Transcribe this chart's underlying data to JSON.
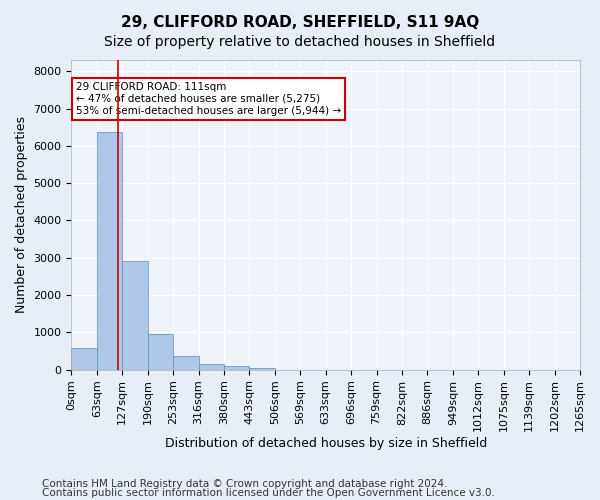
{
  "title": "29, CLIFFORD ROAD, SHEFFIELD, S11 9AQ",
  "subtitle": "Size of property relative to detached houses in Sheffield",
  "xlabel": "Distribution of detached houses by size in Sheffield",
  "ylabel": "Number of detached properties",
  "bar_values": [
    580,
    6370,
    2920,
    970,
    360,
    155,
    90,
    55,
    0,
    0,
    0,
    0,
    0,
    0,
    0,
    0,
    0,
    0,
    0,
    0
  ],
  "bar_labels": [
    "0sqm",
    "63sqm",
    "127sqm",
    "190sqm",
    "253sqm",
    "316sqm",
    "380sqm",
    "443sqm",
    "506sqm",
    "569sqm",
    "633sqm",
    "696sqm",
    "759sqm",
    "822sqm",
    "886sqm",
    "949sqm",
    "1012sqm",
    "1075sqm",
    "1139sqm",
    "1202sqm",
    "1265sqm"
  ],
  "bar_color": "#aec6e8",
  "bar_edge_color": "#5a8fc2",
  "bar_width": 1.0,
  "ylim": [
    0,
    8300
  ],
  "yticks": [
    0,
    1000,
    2000,
    3000,
    4000,
    5000,
    6000,
    7000,
    8000
  ],
  "red_line_x": 1.85,
  "annotation_text": "29 CLIFFORD ROAD: 111sqm\n← 47% of detached houses are smaller (5,275)\n53% of semi-detached houses are larger (5,944) →",
  "annotation_box_color": "#ffffff",
  "annotation_box_edge_color": "#cc0000",
  "footer_line1": "Contains HM Land Registry data © Crown copyright and database right 2024.",
  "footer_line2": "Contains public sector information licensed under the Open Government Licence v3.0.",
  "background_color": "#e8eef7",
  "plot_bg_color": "#eef2f9",
  "grid_color": "#ffffff",
  "title_fontsize": 11,
  "subtitle_fontsize": 10,
  "axis_label_fontsize": 9,
  "tick_fontsize": 8,
  "footer_fontsize": 7.5
}
